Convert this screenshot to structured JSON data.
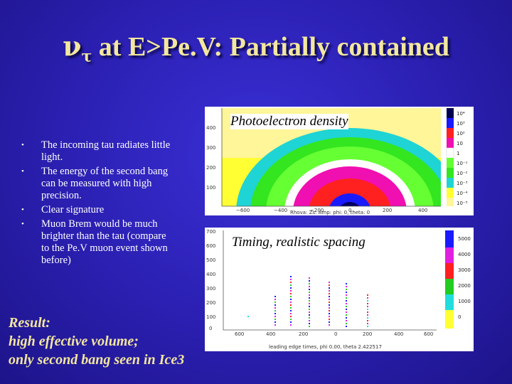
{
  "slide": {
    "title_symbol": "ν",
    "title_subscript": "τ",
    "title_rest": " at E>Pe.V: Partially contained",
    "bullet_icon": "•",
    "bullets": [
      "The incoming tau radiates little light.",
      "The energy of the second bang can be measured with high precision.",
      "Clear signature",
      "Muon Brem would be much brighter than the tau (compare to the Pe.V muon event shown before)"
    ],
    "result": [
      "Result:",
      "high effective volume;",
      "only second bang seen in Ice3"
    ]
  },
  "plots": {
    "top": {
      "caption": "Photoelectron density",
      "y_ticks": [
        "400",
        "300",
        "200",
        "100"
      ],
      "x_ticks": [
        "−600",
        "−400",
        "−200",
        "0",
        "200",
        "400"
      ],
      "footer": "Rhova: Zs: Amp: phi: 0, theta: 0",
      "scale_labels": [
        "10⁴",
        "10³",
        "10²",
        "10",
        "1",
        "10⁻¹",
        "10⁻²",
        "10⁻³",
        "10⁻⁴",
        "10⁻⁵"
      ]
    },
    "bottom": {
      "caption": "Timing, realistic spacing",
      "y_ticks": [
        "700",
        "600",
        "500",
        "400",
        "300",
        "200",
        "100",
        "0"
      ],
      "x_ticks": [
        "600",
        "400",
        "200",
        "0",
        "200",
        "400",
        "600"
      ],
      "footer": "leading edge times, phi 0.00, theta 2.422517",
      "scale_labels": [
        "5000",
        "4000",
        "3000",
        "2000",
        "1000",
        "0"
      ]
    }
  }
}
